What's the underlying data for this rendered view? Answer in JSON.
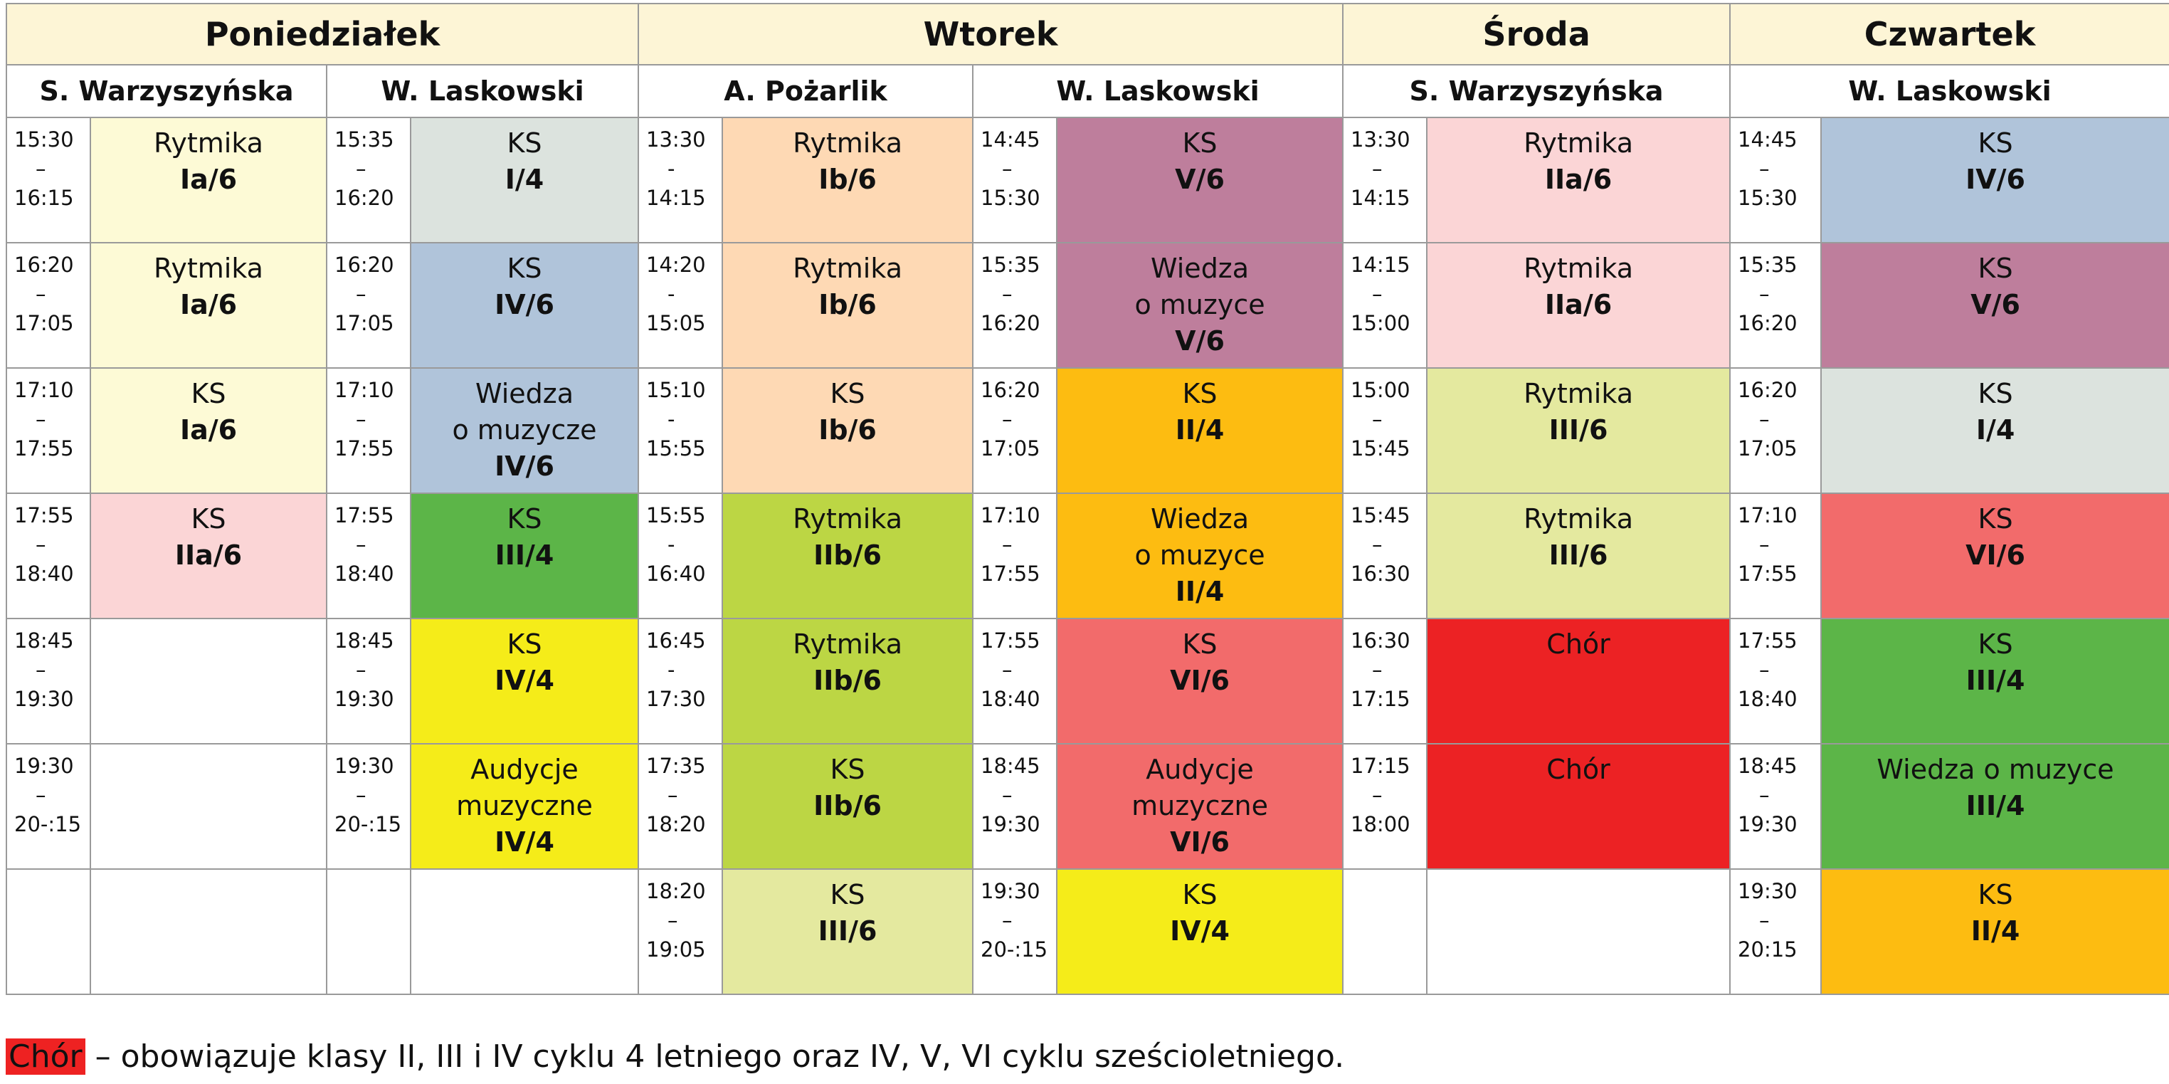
{
  "days": [
    "Poniedziałek",
    "Wtorek",
    "Środa",
    "Czwartek"
  ],
  "teachers": [
    "S. Warzyszyńska",
    "W. Laskowski",
    "A. Pożarlik",
    "W. Laskowski",
    "S. Warzyszyńska",
    "W. Laskowski"
  ],
  "colors": {
    "cream": "#fdfad6",
    "grey": "#dce3de",
    "blue": "#b0c4da",
    "pink": "#fbd5d6",
    "green": "#5cb548",
    "yellow": "#f5ec19",
    "peach": "#fed9b4",
    "lime": "#bcd644",
    "palelime": "#e4e99f",
    "mauve": "#be7e9c",
    "orange": "#fdbc11",
    "salmon": "#f26b6b",
    "red": "#ec2224"
  },
  "columns": [
    {
      "teacher_index": 0,
      "slots": [
        {
          "start": "15:30",
          "sep": "–",
          "end": "16:15",
          "subject": "Rytmika",
          "class": "Ia/6",
          "color": "cream"
        },
        {
          "start": "16:20",
          "sep": "–",
          "end": "17:05",
          "subject": "Rytmika",
          "class": "Ia/6",
          "color": "cream"
        },
        {
          "start": "17:10",
          "sep": "–",
          "end": "17:55",
          "subject": "KS",
          "class": "Ia/6",
          "color": "cream"
        },
        {
          "start": "17:55",
          "sep": "–",
          "end": "18:40",
          "subject": "KS",
          "class": "IIa/6",
          "color": "pink"
        },
        {
          "start": "18:45",
          "sep": "–",
          "end": "19:30",
          "subject": "",
          "class": "",
          "color": ""
        },
        {
          "start": "19:30",
          "sep": "–",
          "end": "20-:15",
          "subject": "",
          "class": "",
          "color": ""
        },
        {
          "start": "",
          "sep": "",
          "end": "",
          "subject": "",
          "class": "",
          "color": ""
        }
      ]
    },
    {
      "teacher_index": 1,
      "slots": [
        {
          "start": "15:35",
          "sep": "–",
          "end": "16:20",
          "subject": "KS",
          "class": "I/4",
          "color": "grey"
        },
        {
          "start": "16:20",
          "sep": "–",
          "end": "17:05",
          "subject": "KS",
          "class": "IV/6",
          "color": "blue"
        },
        {
          "start": "17:10",
          "sep": "–",
          "end": "17:55",
          "subject": "Wiedza",
          "subject2": "o muzycze",
          "class": "IV/6",
          "color": "blue"
        },
        {
          "start": "17:55",
          "sep": "–",
          "end": "18:40",
          "subject": "KS",
          "class": "III/4",
          "color": "green"
        },
        {
          "start": "18:45",
          "sep": "–",
          "end": "19:30",
          "subject": "KS",
          "class": "IV/4",
          "color": "yellow"
        },
        {
          "start": "19:30",
          "sep": "–",
          "end": "20-:15",
          "subject": "Audycje",
          "subject2": "muzyczne",
          "class": "IV/4",
          "color": "yellow"
        },
        {
          "start": "",
          "sep": "",
          "end": "",
          "subject": "",
          "class": "",
          "color": ""
        }
      ]
    },
    {
      "teacher_index": 2,
      "slots": [
        {
          "start": "13:30",
          "sep": "-",
          "end": "14:15",
          "subject": "Rytmika",
          "class": "Ib/6",
          "color": "peach"
        },
        {
          "start": "14:20",
          "sep": "-",
          "end": "15:05",
          "subject": "Rytmika",
          "class": "Ib/6",
          "color": "peach"
        },
        {
          "start": "15:10",
          "sep": "-",
          "end": "15:55",
          "subject": "KS",
          "class": "Ib/6",
          "color": "peach"
        },
        {
          "start": "15:55",
          "sep": "-",
          "end": "16:40",
          "subject": "Rytmika",
          "class": "IIb/6",
          "color": "lime"
        },
        {
          "start": "16:45",
          "sep": "-",
          "end": "17:30",
          "subject": "Rytmika",
          "class": "IIb/6",
          "color": "lime"
        },
        {
          "start": "17:35",
          "sep": "–",
          "end": "18:20",
          "subject": "KS",
          "class": "IIb/6",
          "color": "lime"
        },
        {
          "start": "18:20",
          "sep": "–",
          "end": "19:05",
          "subject": "KS",
          "class": "III/6",
          "color": "palelime"
        }
      ]
    },
    {
      "teacher_index": 3,
      "slots": [
        {
          "start": "14:45",
          "sep": "–",
          "end": "15:30",
          "subject": "KS",
          "class": "V/6",
          "color": "mauve"
        },
        {
          "start": "15:35",
          "sep": "–",
          "end": "16:20",
          "subject": "Wiedza",
          "subject2": "o muzyce",
          "class": "V/6",
          "color": "mauve"
        },
        {
          "start": "16:20",
          "sep": "–",
          "end": "17:05",
          "subject": "KS",
          "class": "II/4",
          "color": "orange"
        },
        {
          "start": "17:10",
          "sep": "–",
          "end": "17:55",
          "subject": "Wiedza",
          "subject2": "o muzyce",
          "class": "II/4",
          "color": "orange"
        },
        {
          "start": "17:55",
          "sep": "–",
          "end": "18:40",
          "subject": "KS",
          "class": "VI/6",
          "color": "salmon"
        },
        {
          "start": "18:45",
          "sep": "–",
          "end": "19:30",
          "subject": "Audycje",
          "subject2": "muzyczne",
          "class": "VI/6",
          "color": "salmon"
        },
        {
          "start": "19:30",
          "sep": "–",
          "end": "20-:15",
          "subject": "KS",
          "class": "IV/4",
          "color": "yellow"
        }
      ]
    },
    {
      "teacher_index": 4,
      "slots": [
        {
          "start": "13:30",
          "sep": "–",
          "end": "14:15",
          "subject": "Rytmika",
          "class": "IIa/6",
          "color": "pink"
        },
        {
          "start": "14:15",
          "sep": "–",
          "end": "15:00",
          "subject": "Rytmika",
          "class": "IIa/6",
          "color": "pink"
        },
        {
          "start": "15:00",
          "sep": "–",
          "end": "15:45",
          "subject": "Rytmika",
          "class": "III/6",
          "color": "palelime"
        },
        {
          "start": "15:45",
          "sep": "–",
          "end": "16:30",
          "subject": "Rytmika",
          "class": "III/6",
          "color": "palelime"
        },
        {
          "start": "16:30",
          "sep": "–",
          "end": "17:15",
          "subject": "Chór",
          "class": "",
          "color": "red"
        },
        {
          "start": "17:15",
          "sep": "–",
          "end": "18:00",
          "subject": "Chór",
          "class": "",
          "color": "red"
        },
        {
          "start": "",
          "sep": "",
          "end": "",
          "subject": "",
          "class": "",
          "color": ""
        }
      ]
    },
    {
      "teacher_index": 5,
      "slots": [
        {
          "start": "14:45",
          "sep": "–",
          "end": "15:30",
          "subject": "KS",
          "class": "IV/6",
          "color": "blue"
        },
        {
          "start": "15:35",
          "sep": "–",
          "end": "16:20",
          "subject": "KS",
          "class": "V/6",
          "color": "mauve"
        },
        {
          "start": "16:20",
          "sep": "–",
          "end": "17:05",
          "subject": "KS",
          "class": "I/4",
          "color": "grey"
        },
        {
          "start": "17:10",
          "sep": "–",
          "end": "17:55",
          "subject": "KS",
          "class": "VI/6",
          "color": "salmon"
        },
        {
          "start": "17:55",
          "sep": "–",
          "end": "18:40",
          "subject": "KS",
          "class": "III/4",
          "color": "green"
        },
        {
          "start": "18:45",
          "sep": "–",
          "end": "19:30",
          "subject": "Wiedza o muzyce",
          "class": "III/4",
          "color": "green"
        },
        {
          "start": "19:30",
          "sep": "–",
          "end": "20:15",
          "subject": "KS",
          "class": "II/4",
          "color": "orange"
        }
      ]
    }
  ],
  "note": {
    "highlight": "Chór",
    "text": " – obowiązuje klasy II, III i IV cyklu 4 letniego oraz IV, V, VI cyklu sześcioletniego."
  }
}
